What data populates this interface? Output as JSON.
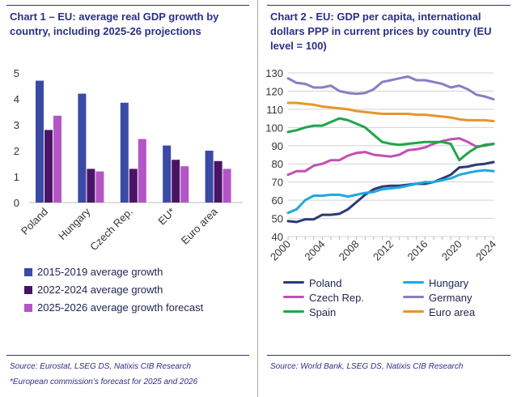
{
  "chart_data": [
    {
      "type": "bar",
      "title": "Chart 1 – EU: average real GDP growth by country, including 2025-26 projections",
      "categories": [
        "Poland",
        "Hungary",
        "Czech Rep.",
        "EU*",
        "Euro area"
      ],
      "ylim": [
        0,
        5
      ],
      "yticks": [
        "0",
        "1",
        "2",
        "3",
        "4",
        "5"
      ],
      "series": [
        {
          "name": "2015-2019 average growth",
          "color": "#3a4aa6",
          "values": [
            4.7,
            4.2,
            3.85,
            2.2,
            2.0
          ]
        },
        {
          "name": "2022-2024 average growth",
          "color": "#4b1366",
          "values": [
            2.8,
            1.3,
            1.3,
            1.65,
            1.6
          ]
        },
        {
          "name": "2025-2026 average growth forecast",
          "color": "#b455c7",
          "values": [
            3.35,
            1.2,
            2.45,
            1.4,
            1.3
          ]
        }
      ],
      "source": "Source: Eurostat, LSEG DS, Natixis CIB Research",
      "footnote": "*European commission’s forecast for 2025 and 2026"
    },
    {
      "type": "line",
      "title": "Chart 2 - EU: GDP per capita, international dollars PPP in current prices by country (EU level = 100)",
      "x": [
        2000,
        2001,
        2002,
        2003,
        2004,
        2005,
        2006,
        2007,
        2008,
        2009,
        2010,
        2011,
        2012,
        2013,
        2014,
        2015,
        2016,
        2017,
        2018,
        2019,
        2020,
        2021,
        2022,
        2023,
        2024
      ],
      "xticks": [
        "2000",
        "2004",
        "2008",
        "2012",
        "2016",
        "2020",
        "2024"
      ],
      "ylim": [
        40,
        130
      ],
      "yticks": [
        "40",
        "50",
        "60",
        "70",
        "80",
        "90",
        "100",
        "110",
        "120",
        "130"
      ],
      "series": [
        {
          "name": "Poland",
          "color": "#2b3a78",
          "values": [
            48.5,
            48,
            49.5,
            49.5,
            52,
            52,
            52.5,
            55,
            59,
            63,
            66,
            67.5,
            68,
            68,
            68.5,
            69,
            69,
            70,
            72,
            74,
            78,
            78.5,
            79.5,
            80,
            81
          ]
        },
        {
          "name": "Hungary",
          "color": "#1ea9e1",
          "values": [
            53,
            55,
            60,
            62.5,
            62.5,
            63,
            63,
            62,
            63,
            64,
            64.5,
            66,
            66.5,
            67,
            68,
            69,
            70,
            70,
            71,
            72,
            74,
            75,
            76,
            76.5,
            76
          ]
        },
        {
          "name": "Czech Rep.",
          "color": "#c24fb5",
          "values": [
            74,
            76,
            76,
            79,
            80,
            82,
            82,
            84.5,
            86,
            86.5,
            85,
            84.5,
            84,
            85,
            87.5,
            88,
            89,
            91,
            92.5,
            93.5,
            94,
            92,
            89.5,
            90,
            91
          ]
        },
        {
          "name": "Germany",
          "color": "#8c7cc4",
          "values": [
            127,
            124.5,
            124,
            122,
            122,
            123,
            120,
            119,
            118.5,
            119,
            121,
            125,
            126,
            127,
            128,
            126,
            126,
            125,
            124,
            122,
            123,
            121,
            118,
            117,
            115.5
          ]
        },
        {
          "name": "Spain",
          "color": "#1fa64a",
          "values": [
            97.5,
            98.5,
            100,
            101,
            101,
            103,
            105,
            104,
            102,
            100,
            96,
            92,
            91,
            90.5,
            91,
            91.5,
            92,
            92,
            92,
            91,
            82,
            86,
            89,
            90.5,
            91
          ]
        },
        {
          "name": "Euro area",
          "color": "#e8952c",
          "values": [
            113.5,
            113.5,
            113,
            112.5,
            111.5,
            111,
            110.5,
            110,
            109,
            108.5,
            108,
            107.5,
            107.5,
            107.5,
            107.5,
            107,
            107,
            106.5,
            106,
            105.5,
            104.5,
            104,
            104,
            104,
            103.5
          ]
        }
      ],
      "source": "Source: World Bank, LSEG DS, Natixis CIB Research"
    }
  ]
}
